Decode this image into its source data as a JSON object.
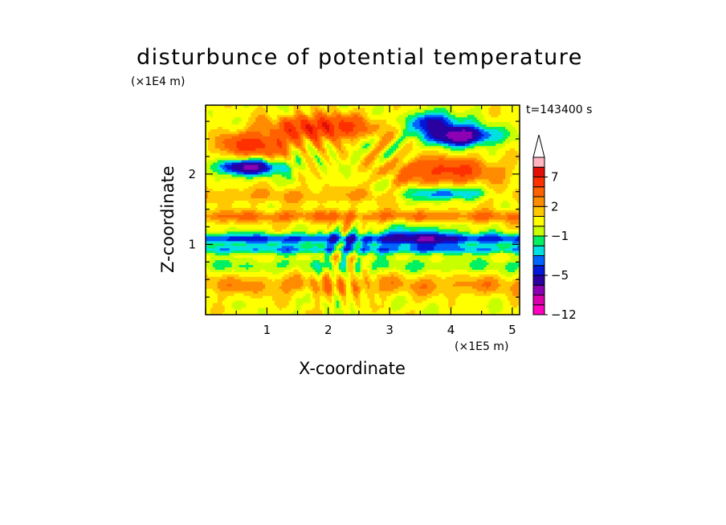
{
  "chart_data": {
    "type": "heatmap",
    "title": "disturbunce of potential temperature",
    "xlabel": "X-coordinate",
    "ylabel": "Z-coordinate",
    "x_unit_label": "(×1E5 m)",
    "y_unit_label": "(×1E4 m)",
    "time_label": "t=143400 s",
    "xlim": [
      0,
      5.12
    ],
    "ylim": [
      0,
      2.98
    ],
    "xticks": [
      1,
      2,
      3,
      4,
      5
    ],
    "yticks": [
      1,
      2
    ],
    "colorbar": {
      "levels": [
        -12,
        -11,
        -9,
        -7,
        -5,
        -4,
        -3,
        -2,
        -1,
        0,
        1,
        2,
        3,
        5,
        7,
        9,
        11
      ],
      "tick_labels": [
        "7",
        "2",
        "−1",
        "−5",
        "−12"
      ],
      "tick_values": [
        7,
        2,
        -1,
        -5,
        -12
      ],
      "colors": [
        "#ff00c0",
        "#d800a8",
        "#8c00b4",
        "#2a00a0",
        "#0018d8",
        "#0064ff",
        "#00e0e0",
        "#00f064",
        "#c8ff00",
        "#ffff00",
        "#ffc800",
        "#ff8c00",
        "#ff6000",
        "#ff3000",
        "#e01008",
        "#ffb4c0",
        "#ffffff"
      ],
      "extend": "max"
    }
  }
}
